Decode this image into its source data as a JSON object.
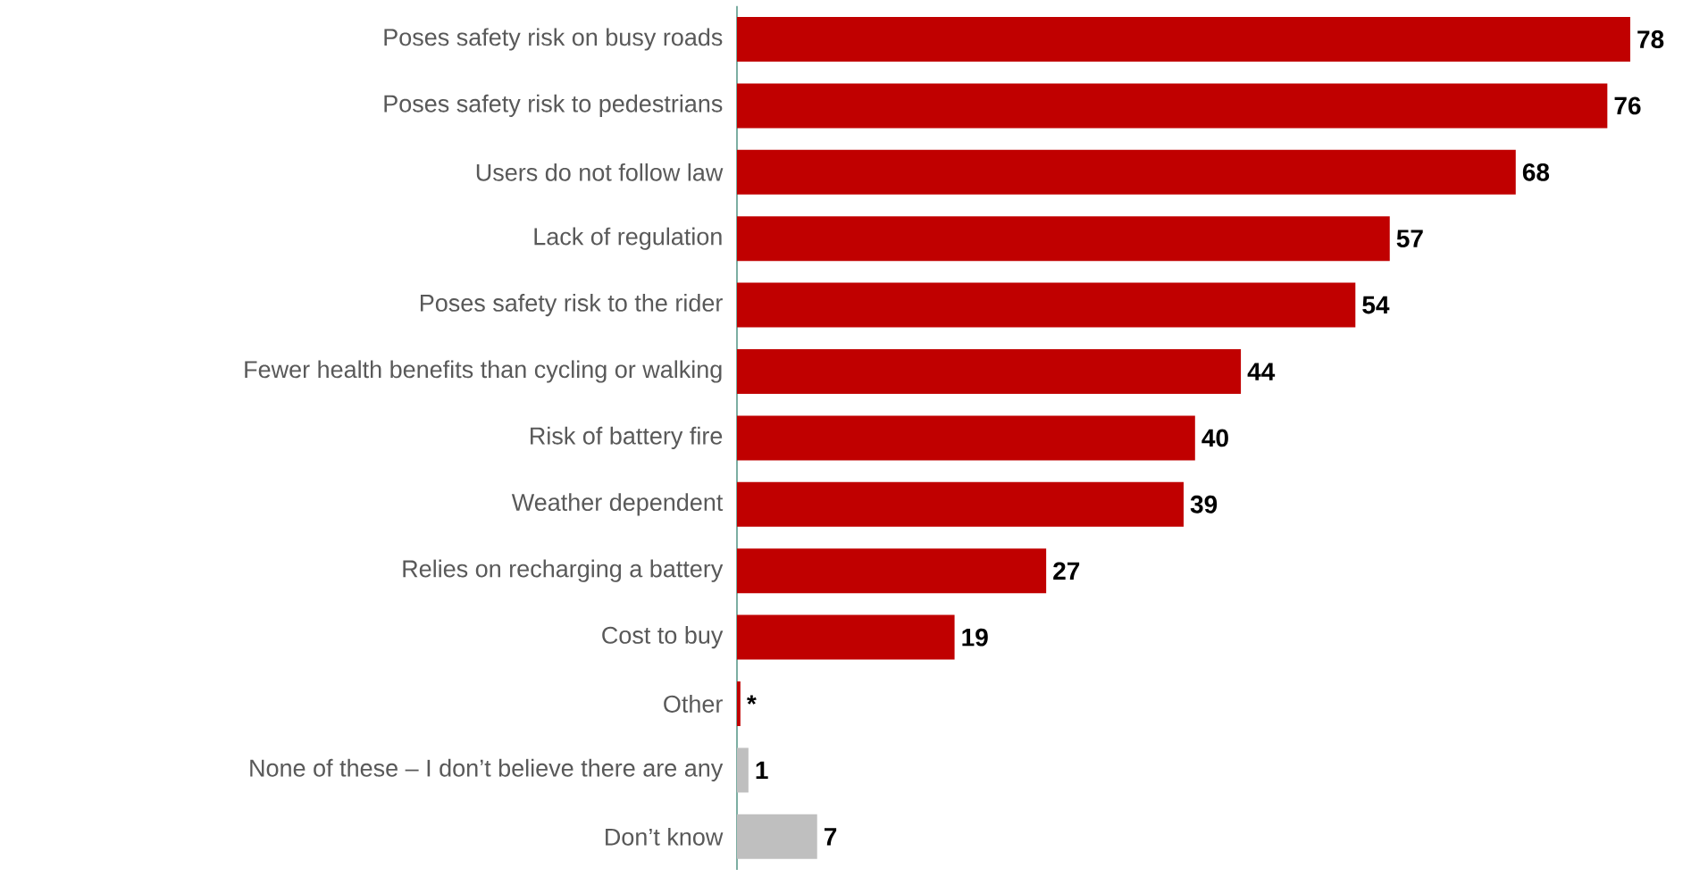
{
  "chart_data": {
    "type": "bar",
    "orientation": "horizontal",
    "categories": [
      "Poses safety risk on busy roads",
      "Poses safety risk to pedestrians",
      "Users do not follow law",
      "Lack of regulation",
      "Poses safety risk to the rider",
      "Fewer health benefits than cycling or walking",
      "Risk of battery fire",
      "Weather dependent",
      "Relies on recharging a battery",
      "Cost to buy",
      "Other",
      "None of these – I don’t believe there are any",
      "Don’t know"
    ],
    "values": [
      78,
      76,
      68,
      57,
      54,
      44,
      40,
      39,
      27,
      19,
      0.3,
      1,
      7
    ],
    "colors": [
      "#c00000",
      "#c00000",
      "#c00000",
      "#c00000",
      "#c00000",
      "#c00000",
      "#c00000",
      "#c00000",
      "#c00000",
      "#c00000",
      "#c00000",
      "#bfbfbf",
      "#bfbfbf"
    ],
    "value_labels": [
      "78",
      "76",
      "68",
      "57",
      "54",
      "44",
      "40",
      "39",
      "27",
      "19",
      "*",
      "1",
      "7"
    ],
    "xlim": [
      0,
      78
    ],
    "tick_labels": "y"
  }
}
